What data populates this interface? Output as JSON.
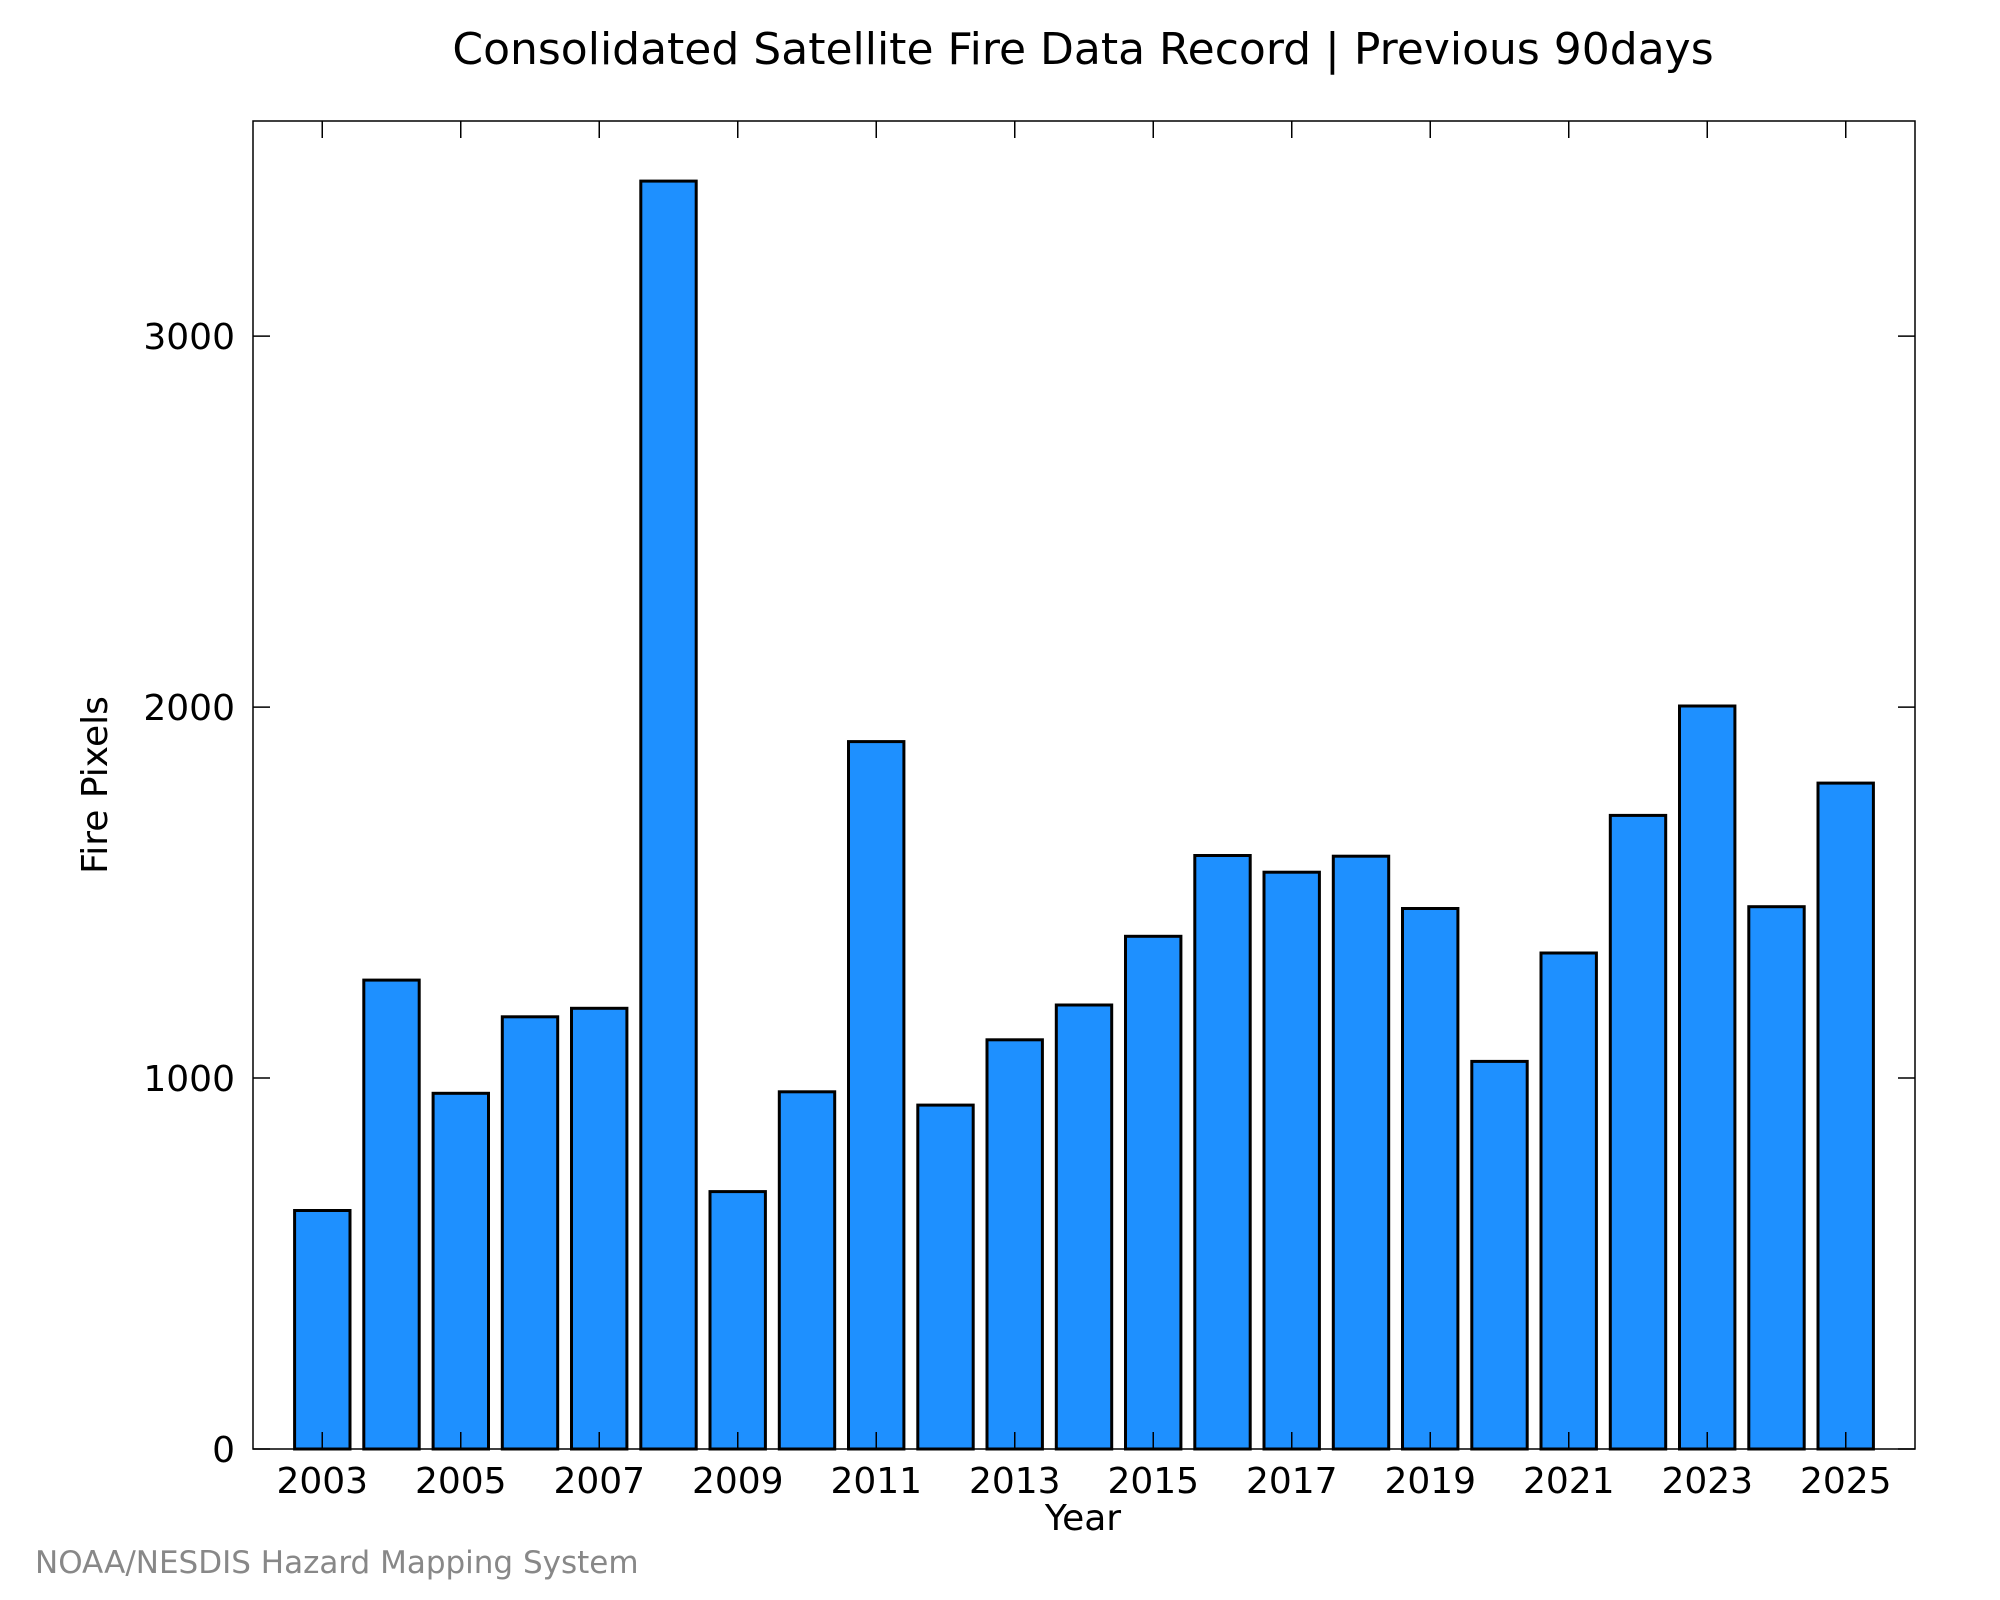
{
  "chart_data": {
    "type": "bar",
    "title": "Consolidated Satellite Fire Data Record | Previous 90days",
    "xlabel": "Year",
    "ylabel": "Fire Pixels",
    "credit": "NOAA/NESDIS Hazard Mapping System",
    "categories": [
      "2003",
      "2004",
      "2005",
      "2006",
      "2007",
      "2008",
      "2009",
      "2010",
      "2011",
      "2012",
      "2013",
      "2014",
      "2015",
      "2016",
      "2017",
      "2018",
      "2019",
      "2020",
      "2021",
      "2022",
      "2023",
      "2024",
      "2025"
    ],
    "values": [
      643,
      1264,
      959,
      1165,
      1188,
      3418,
      694,
      963,
      1907,
      927,
      1103,
      1197,
      1382,
      1600,
      1555,
      1598,
      1457,
      1045,
      1337,
      1708,
      2003,
      1462,
      1795
    ],
    "ylim": [
      0,
      3580
    ],
    "yticks": [
      0,
      1000,
      2000,
      3000
    ],
    "xtick_labels": [
      "2003",
      "2005",
      "2007",
      "2009",
      "2011",
      "2013",
      "2015",
      "2017",
      "2019",
      "2021",
      "2023",
      "2025"
    ],
    "bar_color": "#1e90ff",
    "edge_color": "#000000",
    "grid": false,
    "legend": "none"
  }
}
